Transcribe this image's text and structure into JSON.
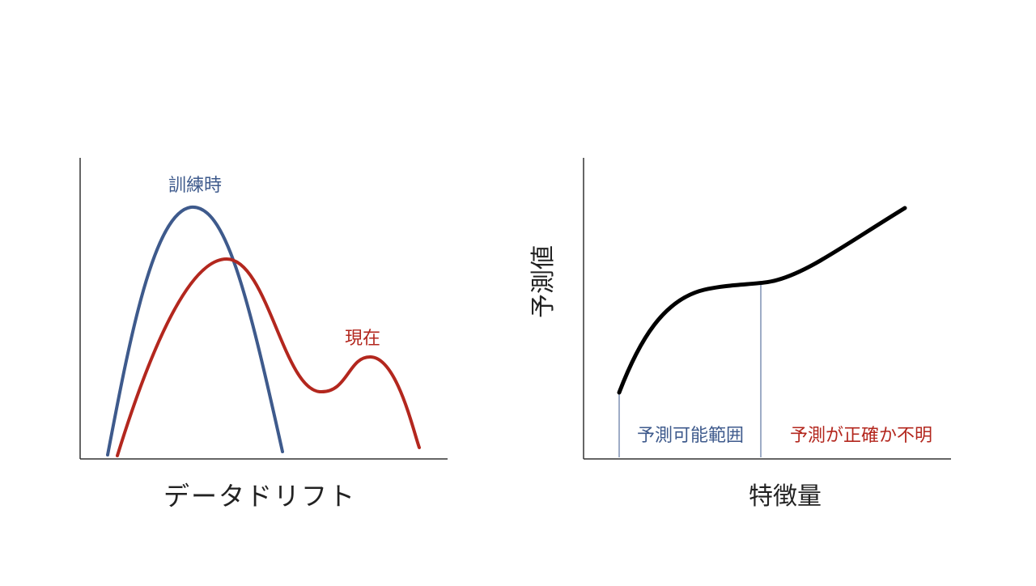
{
  "left_panel": {
    "caption": "データドリフト",
    "curves": [
      {
        "label": "訓練時",
        "color": "#3e5a8c"
      },
      {
        "label": "現在",
        "color": "#b3271e"
      }
    ]
  },
  "right_panel": {
    "y_label": "予測値",
    "x_label": "特徴量",
    "regions": [
      {
        "label": "予測可能範囲",
        "color": "#3e5a8c"
      },
      {
        "label": "予測が正確か不明",
        "color": "#b3271e"
      }
    ],
    "curve_color": "#000000",
    "divider_color": "#3e5a8c"
  },
  "axis_color": "#333333"
}
